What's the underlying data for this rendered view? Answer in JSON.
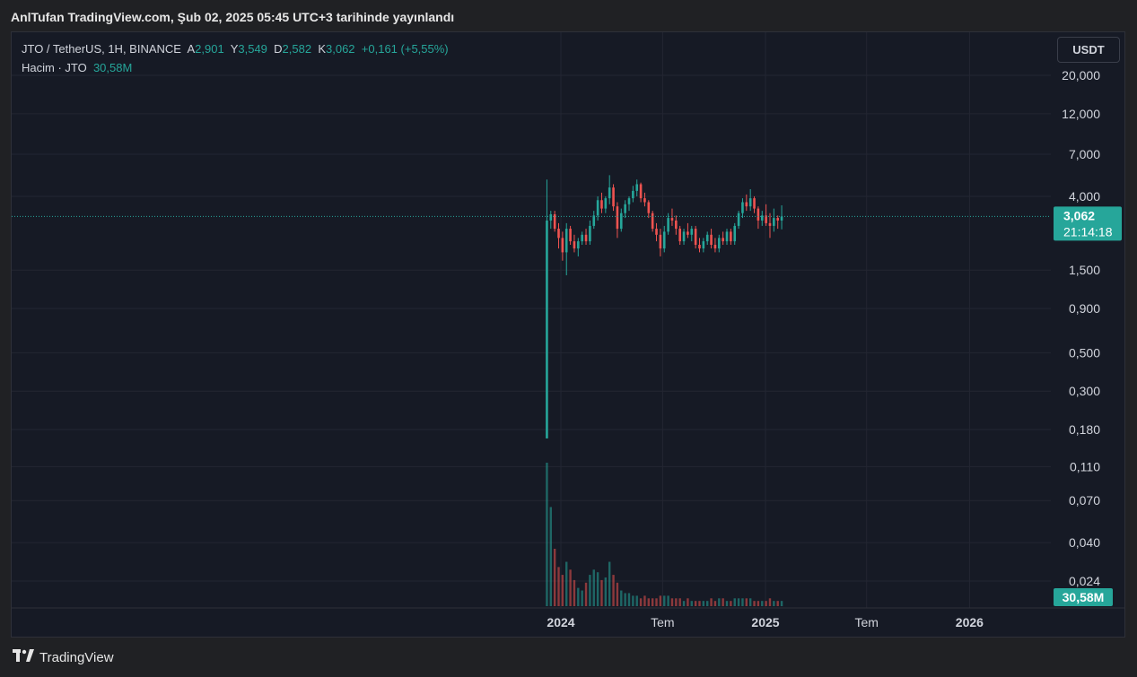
{
  "header": {
    "title": "AnlTufan TradingView.com, Şub 02, 2025 05:45 UTC+3 tarihinde yayınlandı"
  },
  "legend": {
    "symbol": "JTO / TetherUS, 1H, BINANCE",
    "open_label": "A",
    "open": "2,901",
    "high_label": "Y",
    "high": "3,549",
    "low_label": "D",
    "low": "2,582",
    "close_label": "K",
    "close": "3,062",
    "change": "+0,161 (+5,55%)",
    "volume_label": "Hacim · JTO",
    "volume": "30,58M"
  },
  "currency_button": "USDT",
  "footer": {
    "brand": "TradingView"
  },
  "colors": {
    "up": "#26a69a",
    "down": "#ef5350",
    "background": "#161a25",
    "grid": "#232632",
    "text": "#d1d4dc"
  },
  "chart_data": {
    "type": "candlestick",
    "price_scale": "log",
    "y_ticks": [
      20,
      12,
      7,
      4,
      1.5,
      0.9,
      0.5,
      0.3,
      0.18,
      0.11,
      0.07,
      0.04,
      0.024
    ],
    "y_tick_labels": [
      "20,000",
      "12,000",
      "7,000",
      "4,000",
      "1,500",
      "0,900",
      "0,500",
      "0,300",
      "0,180",
      "0,110",
      "0,070",
      "0,040",
      "0,024"
    ],
    "x_ticks": [
      {
        "date": "2024-01-01",
        "label": "2024",
        "bold": true
      },
      {
        "date": "2024-07-01",
        "label": "Tem",
        "bold": false
      },
      {
        "date": "2025-01-01",
        "label": "2025",
        "bold": true
      },
      {
        "date": "2025-07-01",
        "label": "Tem",
        "bold": false
      },
      {
        "date": "2026-01-01",
        "label": "2026",
        "bold": true
      }
    ],
    "last_price": 3.062,
    "last_price_label": "3,062",
    "countdown": "21:14:18",
    "volume_label": "30,58M",
    "candles": [
      {
        "date": "2023-12-07",
        "o": 0.16,
        "h": 5.0,
        "l": 0.16,
        "c": 2.9
      },
      {
        "date": "2023-12-14",
        "o": 2.9,
        "h": 3.3,
        "l": 2.6,
        "c": 3.15
      },
      {
        "date": "2023-12-21",
        "o": 3.15,
        "h": 3.3,
        "l": 2.5,
        "c": 2.6
      },
      {
        "date": "2023-12-28",
        "o": 2.6,
        "h": 2.8,
        "l": 2.0,
        "c": 2.3
      },
      {
        "date": "2024-01-04",
        "o": 2.3,
        "h": 2.5,
        "l": 1.7,
        "c": 1.9
      },
      {
        "date": "2024-01-11",
        "o": 1.9,
        "h": 2.8,
        "l": 1.4,
        "c": 2.6
      },
      {
        "date": "2024-01-18",
        "o": 2.6,
        "h": 2.7,
        "l": 2.1,
        "c": 2.2
      },
      {
        "date": "2024-01-25",
        "o": 2.2,
        "h": 2.4,
        "l": 1.9,
        "c": 2.0
      },
      {
        "date": "2024-02-01",
        "o": 2.0,
        "h": 2.3,
        "l": 1.8,
        "c": 2.2
      },
      {
        "date": "2024-02-08",
        "o": 2.2,
        "h": 2.5,
        "l": 2.1,
        "c": 2.4
      },
      {
        "date": "2024-02-15",
        "o": 2.4,
        "h": 2.6,
        "l": 2.1,
        "c": 2.2
      },
      {
        "date": "2024-02-22",
        "o": 2.2,
        "h": 2.9,
        "l": 2.1,
        "c": 2.7
      },
      {
        "date": "2024-02-29",
        "o": 2.7,
        "h": 3.3,
        "l": 2.6,
        "c": 3.1
      },
      {
        "date": "2024-03-07",
        "o": 3.1,
        "h": 4.0,
        "l": 2.9,
        "c": 3.8
      },
      {
        "date": "2024-03-14",
        "o": 3.8,
        "h": 4.2,
        "l": 3.2,
        "c": 3.4
      },
      {
        "date": "2024-03-21",
        "o": 3.4,
        "h": 4.0,
        "l": 3.2,
        "c": 3.9
      },
      {
        "date": "2024-03-28",
        "o": 3.9,
        "h": 5.3,
        "l": 3.6,
        "c": 4.5
      },
      {
        "date": "2024-04-04",
        "o": 4.5,
        "h": 4.7,
        "l": 3.3,
        "c": 3.5
      },
      {
        "date": "2024-04-11",
        "o": 3.5,
        "h": 3.7,
        "l": 2.3,
        "c": 2.6
      },
      {
        "date": "2024-04-18",
        "o": 2.6,
        "h": 3.4,
        "l": 2.5,
        "c": 3.2
      },
      {
        "date": "2024-04-25",
        "o": 3.2,
        "h": 3.8,
        "l": 3.0,
        "c": 3.6
      },
      {
        "date": "2024-05-02",
        "o": 3.6,
        "h": 4.0,
        "l": 3.3,
        "c": 3.9
      },
      {
        "date": "2024-05-09",
        "o": 3.9,
        "h": 4.6,
        "l": 3.7,
        "c": 4.3
      },
      {
        "date": "2024-05-16",
        "o": 4.3,
        "h": 5.0,
        "l": 4.0,
        "c": 4.7
      },
      {
        "date": "2024-05-23",
        "o": 4.7,
        "h": 4.8,
        "l": 3.7,
        "c": 3.9
      },
      {
        "date": "2024-05-30",
        "o": 3.9,
        "h": 4.2,
        "l": 3.5,
        "c": 3.7
      },
      {
        "date": "2024-06-06",
        "o": 3.7,
        "h": 3.8,
        "l": 3.0,
        "c": 3.2
      },
      {
        "date": "2024-06-13",
        "o": 3.2,
        "h": 3.3,
        "l": 2.5,
        "c": 2.6
      },
      {
        "date": "2024-06-20",
        "o": 2.6,
        "h": 2.8,
        "l": 2.2,
        "c": 2.4
      },
      {
        "date": "2024-06-27",
        "o": 2.4,
        "h": 2.6,
        "l": 1.8,
        "c": 2.0
      },
      {
        "date": "2024-07-04",
        "o": 2.0,
        "h": 2.7,
        "l": 1.9,
        "c": 2.5
      },
      {
        "date": "2024-07-11",
        "o": 2.5,
        "h": 3.2,
        "l": 2.4,
        "c": 3.0
      },
      {
        "date": "2024-07-18",
        "o": 3.0,
        "h": 3.4,
        "l": 2.7,
        "c": 2.9
      },
      {
        "date": "2024-07-25",
        "o": 2.9,
        "h": 3.1,
        "l": 2.4,
        "c": 2.6
      },
      {
        "date": "2024-08-01",
        "o": 2.6,
        "h": 2.7,
        "l": 2.1,
        "c": 2.2
      },
      {
        "date": "2024-08-08",
        "o": 2.2,
        "h": 2.6,
        "l": 2.1,
        "c": 2.5
      },
      {
        "date": "2024-08-15",
        "o": 2.5,
        "h": 2.8,
        "l": 2.3,
        "c": 2.4
      },
      {
        "date": "2024-08-22",
        "o": 2.4,
        "h": 2.7,
        "l": 2.2,
        "c": 2.6
      },
      {
        "date": "2024-08-29",
        "o": 2.6,
        "h": 2.7,
        "l": 2.0,
        "c": 2.1
      },
      {
        "date": "2024-09-05",
        "o": 2.1,
        "h": 2.3,
        "l": 1.9,
        "c": 2.0
      },
      {
        "date": "2024-09-12",
        "o": 2.0,
        "h": 2.3,
        "l": 1.9,
        "c": 2.2
      },
      {
        "date": "2024-09-19",
        "o": 2.2,
        "h": 2.5,
        "l": 2.1,
        "c": 2.4
      },
      {
        "date": "2024-09-26",
        "o": 2.4,
        "h": 2.6,
        "l": 2.0,
        "c": 2.1
      },
      {
        "date": "2024-10-03",
        "o": 2.1,
        "h": 2.3,
        "l": 1.9,
        "c": 2.0
      },
      {
        "date": "2024-10-10",
        "o": 2.0,
        "h": 2.4,
        "l": 1.9,
        "c": 2.3
      },
      {
        "date": "2024-10-17",
        "o": 2.3,
        "h": 2.5,
        "l": 2.1,
        "c": 2.2
      },
      {
        "date": "2024-10-24",
        "o": 2.2,
        "h": 2.6,
        "l": 2.1,
        "c": 2.5
      },
      {
        "date": "2024-10-31",
        "o": 2.5,
        "h": 2.6,
        "l": 2.1,
        "c": 2.2
      },
      {
        "date": "2024-11-07",
        "o": 2.2,
        "h": 2.8,
        "l": 2.1,
        "c": 2.7
      },
      {
        "date": "2024-11-14",
        "o": 2.7,
        "h": 3.3,
        "l": 2.6,
        "c": 3.2
      },
      {
        "date": "2024-11-21",
        "o": 3.2,
        "h": 3.9,
        "l": 3.0,
        "c": 3.7
      },
      {
        "date": "2024-11-28",
        "o": 3.7,
        "h": 4.1,
        "l": 3.3,
        "c": 3.5
      },
      {
        "date": "2024-12-05",
        "o": 3.5,
        "h": 4.4,
        "l": 3.3,
        "c": 3.9
      },
      {
        "date": "2024-12-12",
        "o": 3.9,
        "h": 4.0,
        "l": 3.2,
        "c": 3.4
      },
      {
        "date": "2024-12-19",
        "o": 3.4,
        "h": 3.5,
        "l": 2.6,
        "c": 2.9
      },
      {
        "date": "2024-12-26",
        "o": 2.9,
        "h": 3.3,
        "l": 2.7,
        "c": 3.1
      },
      {
        "date": "2025-01-02",
        "o": 3.1,
        "h": 3.6,
        "l": 2.7,
        "c": 2.8
      },
      {
        "date": "2025-01-09",
        "o": 2.8,
        "h": 3.2,
        "l": 2.3,
        "c": 2.7
      },
      {
        "date": "2025-01-16",
        "o": 2.7,
        "h": 3.4,
        "l": 2.5,
        "c": 3.0
      },
      {
        "date": "2025-01-23",
        "o": 3.0,
        "h": 3.1,
        "l": 2.6,
        "c": 2.9
      },
      {
        "date": "2025-01-30",
        "o": 2.9,
        "h": 3.55,
        "l": 2.58,
        "c": 3.06
      }
    ],
    "volumes": [
      55,
      38,
      22,
      15,
      12,
      17,
      14,
      10,
      7,
      6,
      9,
      12,
      14,
      13,
      10,
      11,
      17,
      12,
      9,
      6,
      5,
      5,
      4,
      4,
      3,
      4,
      3,
      3,
      3,
      4,
      4,
      4,
      3,
      3,
      3,
      2,
      3,
      2,
      2,
      2,
      2,
      2,
      3,
      2,
      3,
      3,
      2,
      2,
      3,
      3,
      3,
      3,
      3,
      2,
      2,
      2,
      2,
      3,
      2,
      2,
      2
    ]
  }
}
